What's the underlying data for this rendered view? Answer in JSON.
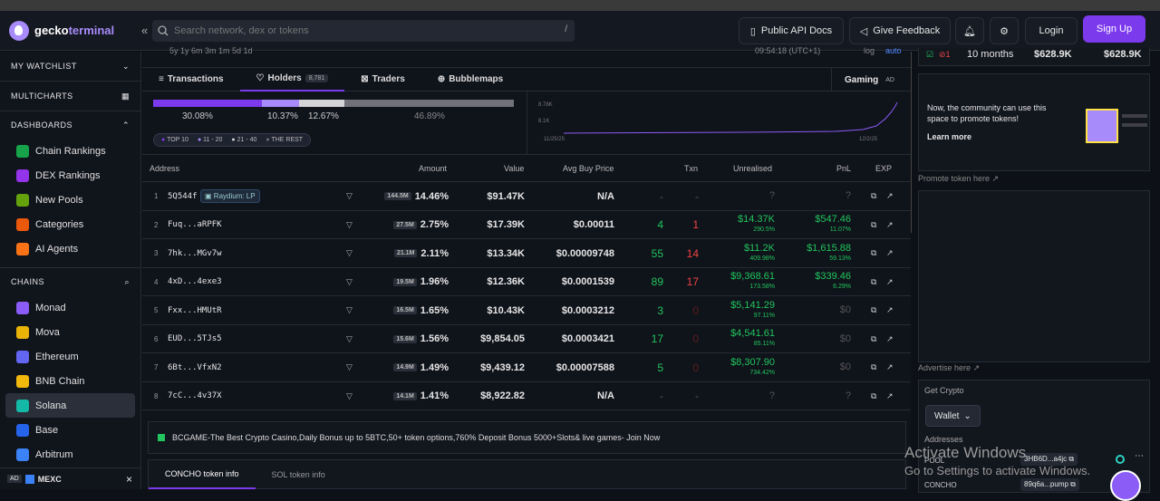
{
  "header": {
    "logo_text_1": "gecko",
    "logo_text_2": "terminal",
    "collapse": "«",
    "search_placeholder": "Search network, dex or tokens",
    "search_kbd": "/",
    "api_docs": "Public API Docs",
    "feedback": "Give Feedback",
    "login": "Login",
    "signup": "Sign Up"
  },
  "sidebar": {
    "watchlist": "MY WATCHLIST",
    "multicharts": "MULTICHARTS",
    "dashboards": "DASHBOARDS",
    "dash_items": [
      "Chain Rankings",
      "DEX Rankings",
      "New Pools",
      "Categories",
      "AI Agents"
    ],
    "chains_title": "CHAINS",
    "chains": [
      "Monad",
      "Mova",
      "Ethereum",
      "BNB Chain",
      "Solana",
      "Base",
      "Arbitrum"
    ],
    "ad_label": "AD",
    "ad_name": "MEXC",
    "ad_close": "×"
  },
  "timebar": {
    "ranges": "5y 1y 6m 3m 1m 5d 1d",
    "time": "09:54:18 (UTC+1)",
    "log": "log",
    "auto": "auto"
  },
  "tabs": {
    "transactions": "Transactions",
    "holders": "Holders",
    "holders_count": "8,781",
    "traders": "Traders",
    "bubblemaps": "Bubblemaps",
    "gaming": "Gaming",
    "ad": "AD"
  },
  "distribution": {
    "segments": [
      {
        "label": "30.08%",
        "value": 30.08,
        "color": "#7c3aed"
      },
      {
        "label": "10.37%",
        "value": 10.37,
        "color": "#a78bfa"
      },
      {
        "label": "12.67%",
        "value": 12.67,
        "color": "#d4d4d8"
      },
      {
        "label": "46.89%",
        "value": 46.89,
        "color": "#71717a"
      }
    ],
    "legend": [
      "TOP 10",
      "11 - 20",
      "21 - 40",
      "THE REST"
    ],
    "chart_y": [
      "8.78K",
      "8.1K"
    ],
    "chart_x": [
      "11/25/25",
      "12/2/25"
    ]
  },
  "table": {
    "headers": [
      "Address",
      "Amount",
      "Value",
      "Avg Buy Price",
      "Txn",
      "Unrealised",
      "PnL",
      "EXP"
    ],
    "rows": [
      {
        "n": "1",
        "addr": "5Q544f",
        "tag": "Raydium: LP",
        "amt_badge": "144.5M",
        "pct": "14.46%",
        "value": "$91.47K",
        "avg": "N/A",
        "buy": "-",
        "sell": "-",
        "unreal": "?",
        "unreal_pct": "",
        "pnl": "?",
        "pnl_pct": "",
        "buy_cls": "dim",
        "sell_cls": "dim",
        "unreal_cls": "dim",
        "pnl_cls": "dim"
      },
      {
        "n": "2",
        "addr": "Fuq...aRPFK",
        "tag": "",
        "amt_badge": "27.5M",
        "pct": "2.75%",
        "value": "$17.39K",
        "avg": "$0.00011",
        "buy": "4",
        "sell": "1",
        "unreal": "$14.37K",
        "unreal_pct": "290.5%",
        "pnl": "$547.46",
        "pnl_pct": "11.07%",
        "buy_cls": "green",
        "sell_cls": "red",
        "unreal_cls": "green",
        "pnl_cls": "green"
      },
      {
        "n": "3",
        "addr": "7hk...MGv7w",
        "tag": "",
        "amt_badge": "21.1M",
        "pct": "2.11%",
        "value": "$13.34K",
        "avg": "$0.00009748",
        "buy": "55",
        "sell": "14",
        "unreal": "$11.2K",
        "unreal_pct": "409.98%",
        "pnl": "$1,615.88",
        "pnl_pct": "59.13%",
        "buy_cls": "green",
        "sell_cls": "red",
        "unreal_cls": "green",
        "pnl_cls": "green"
      },
      {
        "n": "4",
        "addr": "4xD...4exe3",
        "tag": "",
        "amt_badge": "19.5M",
        "pct": "1.96%",
        "value": "$12.36K",
        "avg": "$0.0001539",
        "buy": "89",
        "sell": "17",
        "unreal": "$9,368.61",
        "unreal_pct": "173.58%",
        "pnl": "$339.46",
        "pnl_pct": "6.29%",
        "buy_cls": "green",
        "sell_cls": "red",
        "unreal_cls": "green",
        "pnl_cls": "green"
      },
      {
        "n": "5",
        "addr": "Fxx...HMUtR",
        "tag": "",
        "amt_badge": "16.5M",
        "pct": "1.65%",
        "value": "$10.43K",
        "avg": "$0.0003212",
        "buy": "3",
        "sell": "0",
        "unreal": "$5,141.29",
        "unreal_pct": "97.11%",
        "pnl": "$0",
        "pnl_pct": "",
        "buy_cls": "green",
        "sell_cls": "dimred",
        "unreal_cls": "green",
        "pnl_cls": "dim"
      },
      {
        "n": "6",
        "addr": "EUD...5TJs5",
        "tag": "",
        "amt_badge": "15.6M",
        "pct": "1.56%",
        "value": "$9,854.05",
        "avg": "$0.0003421",
        "buy": "17",
        "sell": "0",
        "unreal": "$4,541.61",
        "unreal_pct": "85.11%",
        "pnl": "$0",
        "pnl_pct": "",
        "buy_cls": "green",
        "sell_cls": "dimred",
        "unreal_cls": "green",
        "pnl_cls": "dim"
      },
      {
        "n": "7",
        "addr": "6Bt...VfxN2",
        "tag": "",
        "amt_badge": "14.9M",
        "pct": "1.49%",
        "value": "$9,439.12",
        "avg": "$0.00007588",
        "buy": "5",
        "sell": "0",
        "unreal": "$8,307.90",
        "unreal_pct": "734.42%",
        "pnl": "$0",
        "pnl_pct": "",
        "buy_cls": "green",
        "sell_cls": "dimred",
        "unreal_cls": "green",
        "pnl_cls": "dim"
      },
      {
        "n": "8",
        "addr": "7cC...4v37X",
        "tag": "",
        "amt_badge": "14.1M",
        "pct": "1.41%",
        "value": "$8,922.82",
        "avg": "N/A",
        "buy": "-",
        "sell": "-",
        "unreal": "?",
        "unreal_pct": "",
        "pnl": "?",
        "pnl_pct": "",
        "buy_cls": "dim",
        "sell_cls": "dim",
        "unreal_cls": "dim",
        "pnl_cls": "dim"
      }
    ]
  },
  "ad_banner": "BCGAME-The Best Crypto Casino,Daily Bonus up to 5BTC,50+ token options,760% Deposit Bonus 5000+Slots& live games- Join Now",
  "info_tabs": [
    "CONCHO token info",
    "SOL token info"
  ],
  "right": {
    "age": "10 months",
    "v1": "$628.9K",
    "v2": "$628.9K",
    "promo_text": "Now, the community can use this space to promote tokens!",
    "learn_more": "Learn more",
    "promote_link": "Promote token here ↗",
    "advertise_link": "Advertise here ↗",
    "get_crypto": "Get Crypto",
    "wallet": "Wallet",
    "addresses": "Addresses",
    "pool_label": "POOL",
    "pool_addr": "3HB6D...a4jc",
    "concho_label": "CONCHO",
    "concho_addr": "89q6a...pump"
  },
  "watermark": {
    "line1": "Activate Windows",
    "line2": "Go to Settings to activate Windows."
  }
}
